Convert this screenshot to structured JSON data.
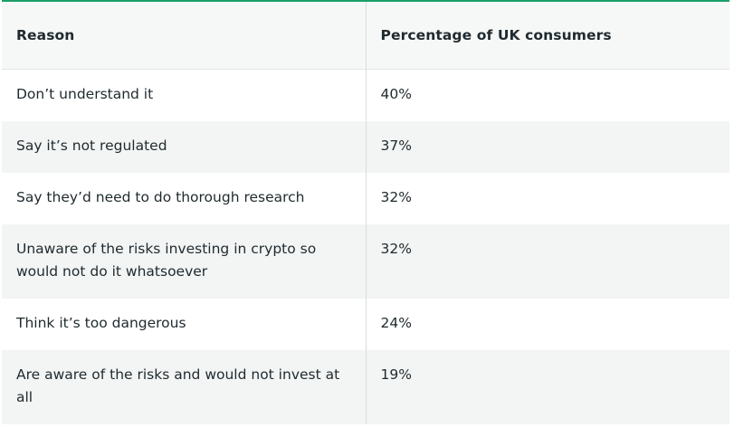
{
  "table": {
    "headers": [
      "Reason",
      "Percentage of UK consumers"
    ],
    "rows": [
      {
        "reason": "Don’t understand it",
        "percentage": "40%"
      },
      {
        "reason": "Say it’s not regulated",
        "percentage": "37%"
      },
      {
        "reason": "Say they’d need to do thorough research",
        "percentage": "32%"
      },
      {
        "reason": "Unaware of the risks investing in crypto so would not do it whatsoever",
        "percentage": "32%"
      },
      {
        "reason": "Think it’s too dangerous",
        "percentage": "24%"
      },
      {
        "reason": "Are aware of the risks and would not invest at all",
        "percentage": "19%"
      }
    ]
  },
  "colors": {
    "accent_border": "#1a9f68",
    "header_bg": "#f6f7f7",
    "stripe_bg": "#f3f4f4",
    "text": "#1f2a2e"
  }
}
